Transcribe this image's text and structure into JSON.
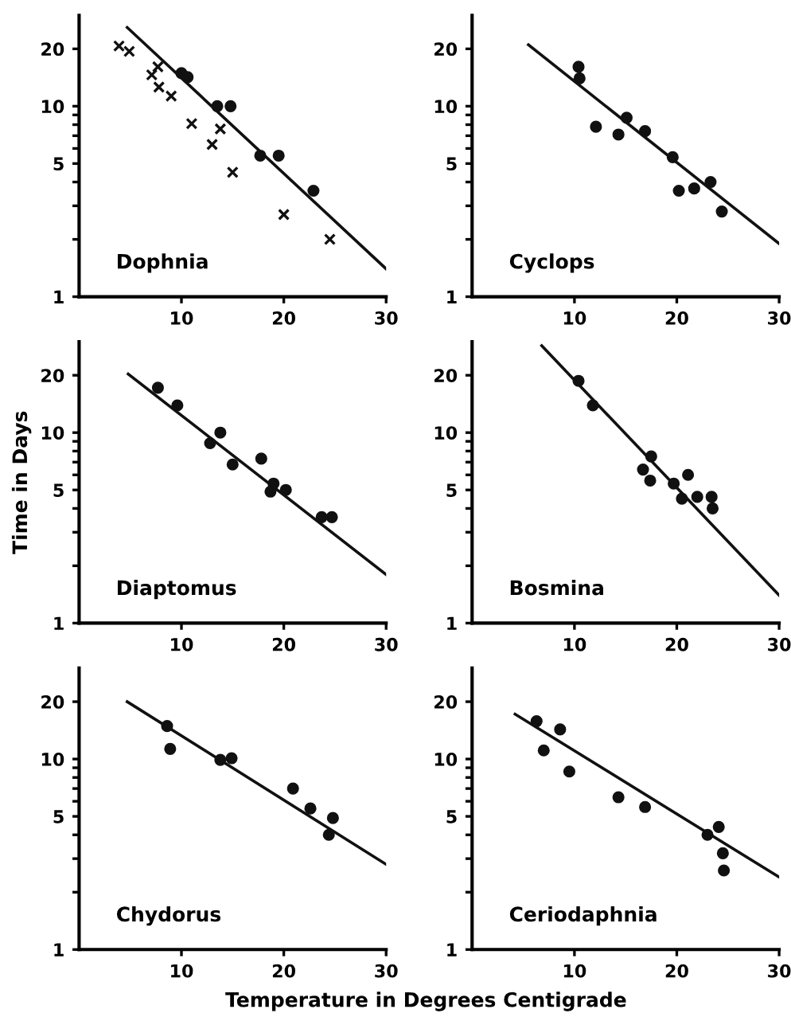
{
  "chart_data": [
    {
      "type": "scatter",
      "title": "Dophnia",
      "xlim": [
        0,
        30
      ],
      "ylim": [
        1,
        30
      ],
      "log": "y",
      "xticks": [
        10,
        20,
        30
      ],
      "yticks": [
        1,
        {
          "value": 2,
          "label": null
        },
        {
          "value": 3,
          "label": null
        },
        {
          "value": 4,
          "label": null
        },
        5,
        {
          "value": 6,
          "label": null
        },
        {
          "value": 7,
          "label": null
        },
        {
          "value": 8,
          "label": null
        },
        {
          "value": 9,
          "label": null
        },
        10,
        20
      ],
      "grid": false,
      "legend": false,
      "series": [
        {
          "color": "#111111",
          "marker": "cross",
          "x": [
            3.9,
            4.9,
            7.7,
            7.1,
            7.8,
            9.0,
            11.0,
            13.8,
            13.0,
            15.0,
            20.0,
            24.5
          ],
          "values": [
            20.7,
            19.4,
            16.1,
            14.6,
            12.6,
            11.3,
            8.1,
            7.6,
            6.3,
            4.5,
            2.7,
            2.0
          ]
        },
        {
          "color": "#111111",
          "marker": "circle",
          "x": [
            10.0,
            10.6,
            13.5,
            14.8,
            17.7,
            19.5,
            22.9
          ],
          "values": [
            14.9,
            14.2,
            10,
            10,
            5.5,
            5.5,
            3.6
          ]
        },
        {
          "type": "line",
          "color": "#111111",
          "marker": "none",
          "x": [
            4.7,
            30
          ],
          "values": [
            25.9,
            1.4
          ]
        }
      ]
    },
    {
      "type": "scatter",
      "title": "Cyclops",
      "xlim": [
        0,
        30
      ],
      "ylim": [
        1,
        30
      ],
      "log": "y",
      "xticks": [
        10,
        20,
        30
      ],
      "yticks": [
        1,
        {
          "value": 2,
          "label": null
        },
        {
          "value": 3,
          "label": null
        },
        {
          "value": 4,
          "label": null
        },
        5,
        {
          "value": 6,
          "label": null
        },
        {
          "value": 7,
          "label": null
        },
        {
          "value": 8,
          "label": null
        },
        {
          "value": 9,
          "label": null
        },
        10,
        20
      ],
      "grid": false,
      "legend": false,
      "series": [
        {
          "color": "#111111",
          "marker": "circle",
          "x": [
            10.4,
            10.5,
            12.1,
            14.3,
            15.1,
            16.9,
            19.6,
            20.2,
            21.7,
            23.3,
            24.4
          ],
          "values": [
            16.1,
            14.0,
            7.8,
            7.1,
            8.7,
            7.4,
            5.4,
            3.6,
            3.7,
            4.0,
            2.8
          ]
        },
        {
          "type": "line",
          "color": "#111111",
          "marker": "none",
          "x": [
            5.5,
            30
          ],
          "values": [
            21,
            1.9
          ]
        }
      ]
    },
    {
      "type": "scatter",
      "title": "Diaptomus",
      "ylabel": "Time in Days",
      "xlim": [
        0,
        30
      ],
      "ylim": [
        1,
        30
      ],
      "log": "y",
      "xticks": [
        10,
        20,
        30
      ],
      "yticks": [
        1,
        {
          "value": 2,
          "label": null
        },
        {
          "value": 3,
          "label": null
        },
        {
          "value": 4,
          "label": null
        },
        5,
        {
          "value": 6,
          "label": null
        },
        {
          "value": 7,
          "label": null
        },
        {
          "value": 8,
          "label": null
        },
        {
          "value": 9,
          "label": null
        },
        10,
        20
      ],
      "grid": false,
      "legend": false,
      "series": [
        {
          "color": "#111111",
          "marker": "circle",
          "x": [
            7.7,
            9.6,
            12.8,
            13.8,
            15.0,
            17.8,
            19.0,
            18.7,
            20.2,
            23.7,
            24.7
          ],
          "values": [
            17.2,
            13.9,
            8.8,
            10,
            6.8,
            7.3,
            5.4,
            4.9,
            5.0,
            3.6,
            3.6
          ]
        },
        {
          "type": "line",
          "color": "#111111",
          "marker": "none",
          "x": [
            4.8,
            30
          ],
          "values": [
            20.3,
            1.8
          ]
        }
      ]
    },
    {
      "type": "scatter",
      "title": "Bosmina",
      "xlim": [
        0,
        30
      ],
      "ylim": [
        1,
        30
      ],
      "log": "y",
      "xticks": [
        10,
        20,
        30
      ],
      "yticks": [
        1,
        {
          "value": 2,
          "label": null
        },
        {
          "value": 3,
          "label": null
        },
        {
          "value": 4,
          "label": null
        },
        5,
        {
          "value": 6,
          "label": null
        },
        {
          "value": 7,
          "label": null
        },
        {
          "value": 8,
          "label": null
        },
        {
          "value": 9,
          "label": null
        },
        10,
        20
      ],
      "grid": false,
      "legend": false,
      "series": [
        {
          "color": "#111111",
          "marker": "circle",
          "x": [
            10.4,
            11.8,
            17.5,
            16.7,
            17.4,
            19.7,
            21.1,
            20.5,
            22.0,
            23.4,
            23.5
          ],
          "values": [
            18.7,
            13.9,
            7.5,
            6.4,
            5.6,
            5.4,
            6.0,
            4.5,
            4.6,
            4.6,
            4.0
          ]
        },
        {
          "type": "line",
          "color": "#111111",
          "marker": "none",
          "x": [
            6.8,
            30
          ],
          "values": [
            28.6,
            1.4
          ]
        }
      ]
    },
    {
      "type": "scatter",
      "title": "Chydorus",
      "xlabel": "Temperature in Degrees Centigrade",
      "xlim": [
        0,
        30
      ],
      "ylim": [
        1,
        30
      ],
      "log": "y",
      "xticks": [
        10,
        20,
        30
      ],
      "yticks": [
        1,
        {
          "value": 2,
          "label": null
        },
        {
          "value": 3,
          "label": null
        },
        {
          "value": 4,
          "label": null
        },
        5,
        {
          "value": 6,
          "label": null
        },
        {
          "value": 7,
          "label": null
        },
        {
          "value": 8,
          "label": null
        },
        {
          "value": 9,
          "label": null
        },
        10,
        20
      ],
      "grid": false,
      "legend": false,
      "series": [
        {
          "color": "#111111",
          "marker": "circle",
          "x": [
            8.6,
            8.9,
            13.8,
            14.9,
            20.9,
            22.6,
            24.8,
            24.4
          ],
          "values": [
            14.9,
            11.3,
            9.9,
            10.1,
            7.0,
            5.5,
            4.9,
            4.0
          ]
        },
        {
          "type": "line",
          "color": "#111111",
          "marker": "none",
          "x": [
            4.7,
            30
          ],
          "values": [
            20,
            2.8
          ]
        }
      ]
    },
    {
      "type": "scatter",
      "title": "Ceriodaphnia",
      "xlim": [
        0,
        30
      ],
      "ylim": [
        1,
        30
      ],
      "log": "y",
      "xticks": [
        10,
        20,
        30
      ],
      "yticks": [
        1,
        {
          "value": 2,
          "label": null
        },
        {
          "value": 3,
          "label": null
        },
        {
          "value": 4,
          "label": null
        },
        5,
        {
          "value": 6,
          "label": null
        },
        {
          "value": 7,
          "label": null
        },
        {
          "value": 8,
          "label": null
        },
        {
          "value": 9,
          "label": null
        },
        10,
        20
      ],
      "grid": false,
      "legend": false,
      "series": [
        {
          "color": "#111111",
          "marker": "circle",
          "x": [
            6.3,
            7.0,
            8.6,
            9.5,
            14.3,
            16.9,
            23.0,
            24.1,
            24.5,
            24.6
          ],
          "values": [
            15.8,
            11.1,
            14.3,
            8.6,
            6.3,
            5.6,
            4.0,
            4.4,
            3.2,
            2.6
          ]
        },
        {
          "type": "line",
          "color": "#111111",
          "marker": "none",
          "x": [
            4.2,
            30
          ],
          "values": [
            17.2,
            2.4
          ]
        }
      ]
    }
  ]
}
